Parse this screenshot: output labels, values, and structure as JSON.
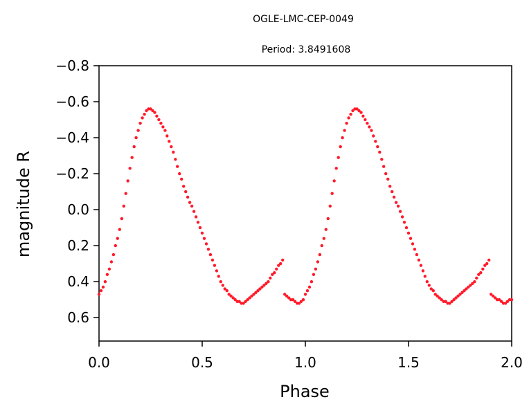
{
  "chart_data": {
    "type": "scatter",
    "title": "OGLE-LMC-CEP-0049",
    "subtitle": "Period: 3.8491608",
    "xlabel": "Phase",
    "ylabel": "magnitude R",
    "xlim": [
      0.0,
      2.0
    ],
    "ylim": [
      0.73,
      -0.8
    ],
    "y_axis_inverted": true,
    "xticks": [
      0.0,
      0.5,
      1.0,
      1.5,
      2.0
    ],
    "xtick_labels": [
      "0.0",
      "0.5",
      "1.0",
      "1.5",
      "2.0"
    ],
    "yticks": [
      -0.8,
      -0.6,
      -0.4,
      -0.2,
      0.0,
      0.2,
      0.4,
      0.6
    ],
    "ytick_labels": [
      "−0.8",
      "−0.6",
      "−0.4",
      "−0.2",
      "0.0",
      "0.2",
      "0.4",
      "0.6"
    ],
    "grid": false,
    "marker_color": "#ff1a2a",
    "series": [
      {
        "x": [
          0.0,
          0.01,
          0.02,
          0.03,
          0.04,
          0.05,
          0.06,
          0.07,
          0.08,
          0.09,
          0.1,
          0.11,
          0.12,
          0.13,
          0.14,
          0.15,
          0.16,
          0.17,
          0.18,
          0.19,
          0.2,
          0.21,
          0.22,
          0.23,
          0.24,
          0.25,
          0.26,
          0.27,
          0.28,
          0.29,
          0.3,
          0.31,
          0.32,
          0.33,
          0.34,
          0.35,
          0.36,
          0.37,
          0.38,
          0.39,
          0.4,
          0.41,
          0.42,
          0.43,
          0.44,
          0.45,
          0.46,
          0.47,
          0.48,
          0.49,
          0.5,
          0.51,
          0.52,
          0.53,
          0.54,
          0.55,
          0.56,
          0.57,
          0.58,
          0.59,
          0.6,
          0.61,
          0.62,
          0.63,
          0.64,
          0.65,
          0.66,
          0.67,
          0.68,
          0.69,
          0.7,
          0.71,
          0.72,
          0.73,
          0.74,
          0.75,
          0.76,
          0.77,
          0.78,
          0.79,
          0.8,
          0.81,
          0.82,
          0.83,
          0.84,
          0.85,
          0.86,
          0.87,
          0.88,
          0.89,
          0.9,
          0.91,
          0.92,
          0.93,
          0.94,
          0.95,
          0.96,
          0.97,
          0.98,
          0.99,
          1.0,
          1.01,
          1.02,
          1.03,
          1.04,
          1.05,
          1.06,
          1.07,
          1.08,
          1.09,
          1.1,
          1.11,
          1.12,
          1.13,
          1.14,
          1.15,
          1.16,
          1.17,
          1.18,
          1.19,
          1.2,
          1.21,
          1.22,
          1.23,
          1.24,
          1.25,
          1.26,
          1.27,
          1.28,
          1.29,
          1.3,
          1.31,
          1.32,
          1.33,
          1.34,
          1.35,
          1.36,
          1.37,
          1.38,
          1.39,
          1.4,
          1.41,
          1.42,
          1.43,
          1.44,
          1.45,
          1.46,
          1.47,
          1.48,
          1.49,
          1.5,
          1.51,
          1.52,
          1.53,
          1.54,
          1.55,
          1.56,
          1.57,
          1.58,
          1.59,
          1.6,
          1.61,
          1.62,
          1.63,
          1.64,
          1.65,
          1.66,
          1.67,
          1.68,
          1.69,
          1.7,
          1.71,
          1.72,
          1.73,
          1.74,
          1.75,
          1.76,
          1.77,
          1.78,
          1.79,
          1.8,
          1.81,
          1.82,
          1.83,
          1.84,
          1.85,
          1.86,
          1.87,
          1.88,
          1.89,
          1.9,
          1.91,
          1.92,
          1.93,
          1.94,
          1.95,
          1.96,
          1.97,
          1.98,
          1.99,
          2.0
        ],
        "y": [
          0.47,
          0.45,
          0.43,
          0.4,
          0.36,
          0.33,
          0.29,
          0.25,
          0.2,
          0.16,
          0.11,
          0.05,
          -0.02,
          -0.09,
          -0.16,
          -0.23,
          -0.29,
          -0.35,
          -0.4,
          -0.44,
          -0.48,
          -0.51,
          -0.53,
          -0.55,
          -0.56,
          -0.56,
          -0.55,
          -0.54,
          -0.52,
          -0.5,
          -0.48,
          -0.46,
          -0.44,
          -0.41,
          -0.38,
          -0.35,
          -0.32,
          -0.28,
          -0.24,
          -0.2,
          -0.17,
          -0.13,
          -0.1,
          -0.07,
          -0.04,
          -0.02,
          0.01,
          0.04,
          0.07,
          0.1,
          0.13,
          0.16,
          0.19,
          0.22,
          0.25,
          0.28,
          0.31,
          0.34,
          0.37,
          0.4,
          0.42,
          0.44,
          0.45,
          0.47,
          0.48,
          0.49,
          0.5,
          0.51,
          0.51,
          0.52,
          0.52,
          0.51,
          0.5,
          0.49,
          0.48,
          0.47,
          0.46,
          0.45,
          0.44,
          0.43,
          0.42,
          0.41,
          0.4,
          0.38,
          0.36,
          0.35,
          0.33,
          0.31,
          0.3,
          0.28,
          0.47,
          0.48,
          0.49,
          0.5,
          0.5,
          0.51,
          0.52,
          0.52,
          0.51,
          0.5,
          0.47,
          0.45,
          0.43,
          0.4,
          0.36,
          0.33,
          0.29,
          0.25,
          0.2,
          0.16,
          0.11,
          0.05,
          -0.02,
          -0.09,
          -0.16,
          -0.23,
          -0.29,
          -0.35,
          -0.4,
          -0.44,
          -0.48,
          -0.51,
          -0.53,
          -0.55,
          -0.56,
          -0.56,
          -0.55,
          -0.54,
          -0.52,
          -0.5,
          -0.48,
          -0.46,
          -0.44,
          -0.41,
          -0.38,
          -0.35,
          -0.32,
          -0.28,
          -0.24,
          -0.2,
          -0.17,
          -0.13,
          -0.1,
          -0.07,
          -0.04,
          -0.02,
          0.01,
          0.04,
          0.07,
          0.1,
          0.13,
          0.16,
          0.19,
          0.22,
          0.25,
          0.28,
          0.31,
          0.34,
          0.37,
          0.4,
          0.42,
          0.44,
          0.45,
          0.47,
          0.48,
          0.49,
          0.5,
          0.51,
          0.51,
          0.52,
          0.52,
          0.51,
          0.5,
          0.49,
          0.48,
          0.47,
          0.46,
          0.45,
          0.44,
          0.43,
          0.42,
          0.41,
          0.4,
          0.38,
          0.36,
          0.35,
          0.33,
          0.31,
          0.3,
          0.28,
          0.47,
          0.48,
          0.49,
          0.5,
          0.5,
          0.51,
          0.52,
          0.52,
          0.51,
          0.5,
          0.5
        ]
      }
    ]
  }
}
